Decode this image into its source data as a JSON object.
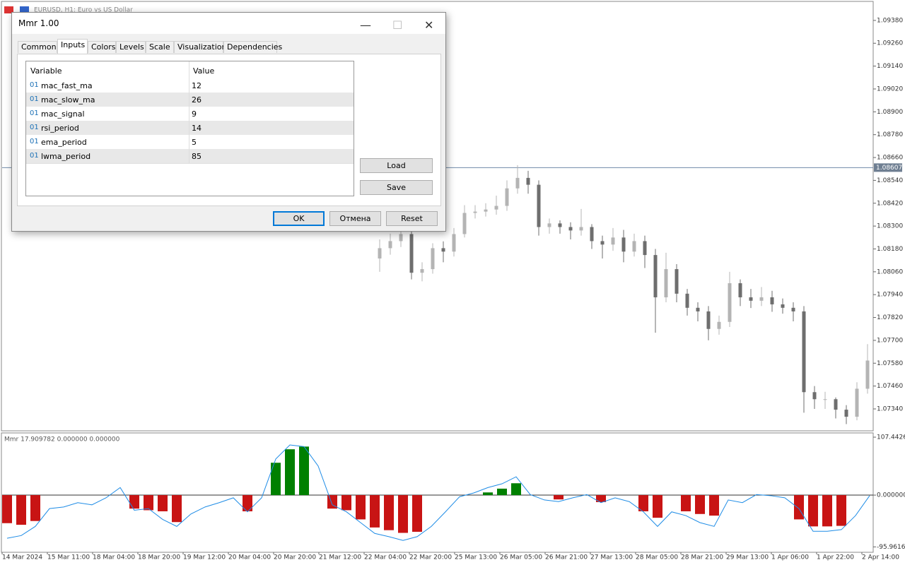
{
  "window": {
    "symbol_title": "EURUSD, H1: Euro vs US Dollar"
  },
  "chart_data": [
    {
      "type": "candlestick",
      "ylim": [
        1.07225,
        1.09476
      ],
      "yticks": [
        {
          "value": 1.0938,
          "label": "1.09380"
        },
        {
          "value": 1.0926,
          "label": "1.09260"
        },
        {
          "value": 1.0914,
          "label": "1.09140"
        },
        {
          "value": 1.0902,
          "label": "1.09020"
        },
        {
          "value": 1.089,
          "label": "1.08900"
        },
        {
          "value": 1.0878,
          "label": "1.08780"
        },
        {
          "value": 1.0866,
          "label": "1.08660"
        },
        {
          "value": 1.0854,
          "label": "1.08540"
        },
        {
          "value": 1.0842,
          "label": "1.08420"
        },
        {
          "value": 1.083,
          "label": "1.08300"
        },
        {
          "value": 1.0818,
          "label": "1.08180"
        },
        {
          "value": 1.0806,
          "label": "1.08060"
        },
        {
          "value": 1.0794,
          "label": "1.07940"
        },
        {
          "value": 1.0782,
          "label": "1.07820"
        },
        {
          "value": 1.077,
          "label": "1.07700"
        },
        {
          "value": 1.0758,
          "label": "1.07580"
        },
        {
          "value": 1.0746,
          "label": "1.07460"
        },
        {
          "value": 1.0734,
          "label": "1.07340"
        }
      ],
      "current_price": {
        "value": 1.08607,
        "label": "1.08607"
      },
      "up_color": "#b4b4b4",
      "down_color": "#6e6e6e",
      "open": [
        1.0813,
        1.08184,
        1.08221,
        1.08258,
        1.08055,
        1.08074,
        1.08184,
        1.08166,
        1.08258,
        1.08369,
        1.08376,
        1.08387,
        1.08406,
        1.08498,
        1.08553,
        1.08517,
        1.08295,
        1.08314,
        1.08295,
        1.08277,
        1.08295,
        1.08221,
        1.08203,
        1.0824,
        1.08166,
        1.08221,
        1.08148,
        1.07926,
        1.08074,
        1.07945,
        1.07871,
        1.07852,
        1.0776,
        1.07797,
        1.08,
        1.07926,
        1.07908,
        1.07926,
        1.07889,
        1.07871,
        1.07852,
        1.07428,
        1.07391,
        1.07391,
        1.07336,
        1.07299,
        1.07446
      ],
      "high": [
        1.0823,
        1.0826,
        1.0829,
        1.0828,
        1.0811,
        1.0821,
        1.0822,
        1.0829,
        1.0841,
        1.0841,
        1.0842,
        1.0846,
        1.0854,
        1.0862,
        1.0859,
        1.0854,
        1.0834,
        1.0833,
        1.0832,
        1.0839,
        1.0831,
        1.0825,
        1.0829,
        1.0828,
        1.0826,
        1.0825,
        1.0818,
        1.0816,
        1.081,
        1.0797,
        1.079,
        1.0788,
        1.0783,
        1.0806,
        1.0802,
        1.0797,
        1.0798,
        1.0796,
        1.0792,
        1.079,
        1.0788,
        1.0746,
        1.0743,
        1.074,
        1.0736,
        1.0748,
        1.0768
      ],
      "low": [
        1.0806,
        1.0815,
        1.0819,
        1.0802,
        1.0801,
        1.0805,
        1.0811,
        1.0814,
        1.0824,
        1.0834,
        1.0835,
        1.0836,
        1.0838,
        1.0847,
        1.0847,
        1.0825,
        1.0826,
        1.0826,
        1.0823,
        1.0825,
        1.0818,
        1.0813,
        1.0817,
        1.0811,
        1.0814,
        1.0808,
        1.0774,
        1.079,
        1.079,
        1.0783,
        1.078,
        1.077,
        1.0773,
        1.0777,
        1.0788,
        1.0787,
        1.0788,
        1.0785,
        1.0784,
        1.078,
        1.0732,
        1.0734,
        1.0734,
        1.0729,
        1.0726,
        1.0728,
        1.0742
      ],
      "close": [
        1.08184,
        1.08221,
        1.08258,
        1.08055,
        1.08074,
        1.08184,
        1.08166,
        1.08258,
        1.08369,
        1.08376,
        1.08387,
        1.08406,
        1.08498,
        1.08553,
        1.08517,
        1.08295,
        1.08314,
        1.08295,
        1.08277,
        1.08295,
        1.08221,
        1.08203,
        1.0824,
        1.08166,
        1.08221,
        1.08148,
        1.07926,
        1.08074,
        1.07945,
        1.07871,
        1.07852,
        1.0776,
        1.07797,
        1.08,
        1.07926,
        1.07908,
        1.07926,
        1.07889,
        1.07871,
        1.07852,
        1.07428,
        1.07391,
        1.07391,
        1.07336,
        1.07299,
        1.07446,
        1.07594
      ]
    },
    {
      "type": "histogram",
      "label": "Mmr 17.909782 0.000000 0.000000",
      "ylim": [
        -106,
        114
      ],
      "yticks": [
        107.44262,
        {
          "value": 0,
          "label": "0.000000"
        },
        {
          "value": -95.9616,
          "label": "-95.96160"
        }
      ],
      "positive_color": "#008000",
      "negative_color": "#c81414",
      "histogram": {
        "values": [
          -52,
          -55,
          -48,
          0,
          0,
          0,
          0,
          0,
          0,
          -25,
          -28,
          -30,
          -50,
          0,
          0,
          0,
          0,
          -30,
          0,
          60,
          85,
          90,
          0,
          -25,
          -28,
          -45,
          -60,
          -65,
          -70,
          -68,
          0,
          0,
          0,
          0,
          5,
          12,
          22,
          0,
          0,
          -8,
          0,
          0,
          -13,
          0,
          0,
          -30,
          -42,
          0,
          -30,
          -35,
          -38,
          0,
          0,
          0,
          0,
          0,
          -45,
          -58,
          -58,
          -57,
          0,
          0
        ]
      },
      "signal_line": {
        "color": "#1e8ce6",
        "values": [
          -80,
          -75,
          -58,
          -25,
          -22,
          -14,
          -18,
          -5,
          14,
          -28,
          -25,
          -45,
          -58,
          -35,
          -22,
          -14,
          -5,
          -31,
          -5,
          67,
          93,
          90,
          54,
          -18,
          -31,
          -51,
          -71,
          -77,
          -84,
          -77,
          -58,
          -31,
          -3,
          4,
          14,
          21,
          34,
          1,
          -9,
          -12,
          -5,
          1,
          -14,
          -5,
          -12,
          -31,
          -58,
          -31,
          -38,
          -51,
          -58,
          -9,
          -14,
          1,
          -1,
          -5,
          -25,
          -67,
          -67,
          -64,
          -38,
          -1
        ]
      },
      "time_labels": [
        "14 Mar 2024",
        "15 Mar 11:00",
        "18 Mar 04:00",
        "18 Mar 20:00",
        "19 Mar 12:00",
        "20 Mar 04:00",
        "20 Mar 20:00",
        "21 Mar 12:00",
        "22 Mar 04:00",
        "22 Mar 20:00",
        "25 Mar 13:00",
        "26 Mar 05:00",
        "26 Mar 21:00",
        "27 Mar 13:00",
        "28 Mar 05:00",
        "28 Mar 21:00",
        "29 Mar 13:00",
        "1 Apr 06:00",
        "1 Apr 22:00",
        "2 Apr 14:00"
      ]
    }
  ],
  "dialog": {
    "title": "Mmr 1.00",
    "tabs": [
      "Common",
      "Inputs",
      "Colors",
      "Levels",
      "Scale",
      "Visualization",
      "Dependencies"
    ],
    "columns": [
      "Variable",
      "Value"
    ],
    "rows": [
      {
        "type": "01",
        "name": "mac_fast_ma",
        "value": 12
      },
      {
        "type": "01",
        "name": "mac_slow_ma",
        "value": 26
      },
      {
        "type": "01",
        "name": "mac_signal",
        "value": 9
      },
      {
        "type": "01",
        "name": "rsi_period",
        "value": 14
      },
      {
        "type": "01",
        "name": "ema_period",
        "value": 5
      },
      {
        "type": "01",
        "name": "lwma_period",
        "value": 85
      }
    ],
    "buttons": {
      "load": "Load",
      "save": "Save",
      "ok": "OK",
      "cancel": "Отмена",
      "reset": "Reset"
    }
  }
}
